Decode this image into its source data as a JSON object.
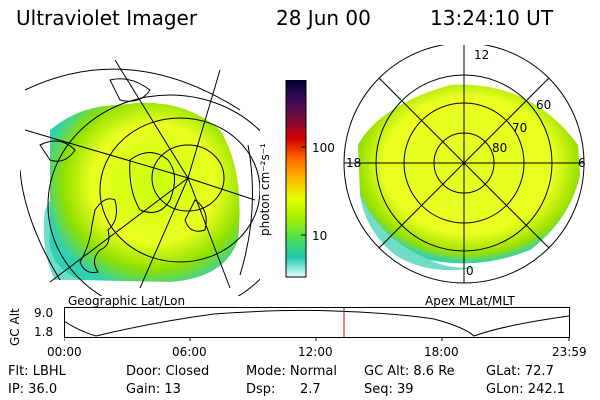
{
  "header": {
    "title": "Ultraviolet Imager",
    "date": "28 Jun 00",
    "time": "13:24:10 UT"
  },
  "left_map": {
    "label": "Geographic Lat/Lon"
  },
  "right_map": {
    "label": "Apex MLat/MLT",
    "mlt_labels": [
      "12",
      "18",
      "6",
      "0"
    ],
    "lat_labels": [
      "60",
      "70",
      "80"
    ]
  },
  "colorbar": {
    "unit_label": "photon cm⁻²s⁻¹",
    "tick_labels": [
      "100",
      "10"
    ],
    "colors": [
      "#000033",
      "#3a0a5a",
      "#7a0a3a",
      "#d40000",
      "#ff6a00",
      "#ffb400",
      "#e6ff00",
      "#a8f000",
      "#4fe04f",
      "#20c8b0",
      "#e6ffff"
    ]
  },
  "altitude_plot": {
    "ylabel": "GC Alt",
    "y_ticks": [
      "9.0",
      "1.8"
    ],
    "x_ticks": [
      "00:00",
      "06:00",
      "12:00",
      "18:00",
      "23:59"
    ],
    "marker_color": "#dd0000"
  },
  "info": {
    "filter": "Flt: LBHL",
    "ip": "IP: 36.0",
    "door": "Door: Closed",
    "gain": "Gain: 13",
    "mode": "Mode: Normal",
    "dsp_label": "Dsp:",
    "dsp_value": "2.7",
    "gc_alt": "GC Alt: 8.6 Re",
    "seq": "Seq: 39",
    "glat": "GLat:  72.7",
    "glon": "GLon: 242.1"
  },
  "colors": {
    "aurora_green": "#7fe000",
    "aurora_yellow": "#eaff20",
    "aurora_cyan": "#30d0b0"
  }
}
